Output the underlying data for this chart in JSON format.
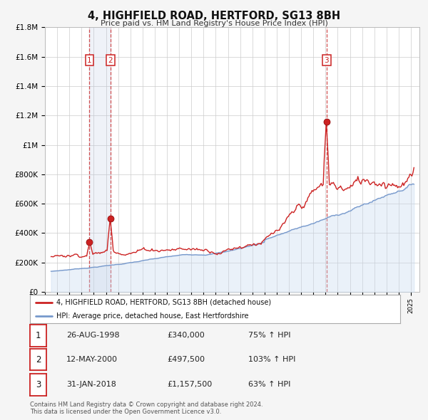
{
  "title": "4, HIGHFIELD ROAD, HERTFORD, SG13 8BH",
  "subtitle": "Price paid vs. HM Land Registry's House Price Index (HPI)",
  "background_color": "#f5f5f5",
  "plot_bg_color": "#ffffff",
  "grid_color": "#cccccc",
  "hpi_color": "#7799cc",
  "hpi_fill_color": "#c5d8ee",
  "price_color": "#cc2222",
  "ylabel_values": [
    "£0",
    "£200K",
    "£400K",
    "£600K",
    "£800K",
    "£1M",
    "£1.2M",
    "£1.4M",
    "£1.6M",
    "£1.8M"
  ],
  "ytick_values": [
    0,
    200000,
    400000,
    600000,
    800000,
    1000000,
    1200000,
    1400000,
    1600000,
    1800000
  ],
  "xmin": 1995.3,
  "xmax": 2025.7,
  "ymin": 0,
  "ymax": 1800000,
  "sale_dates": [
    1998.65,
    2000.36,
    2018.08
  ],
  "sale_prices": [
    340000,
    497500,
    1157500
  ],
  "sale_labels": [
    "1",
    "2",
    "3"
  ],
  "legend_line1": "4, HIGHFIELD ROAD, HERTFORD, SG13 8BH (detached house)",
  "legend_line2": "HPI: Average price, detached house, East Hertfordshire",
  "table_rows": [
    [
      "1",
      "26-AUG-1998",
      "£340,000",
      "75% ↑ HPI"
    ],
    [
      "2",
      "12-MAY-2000",
      "£497,500",
      "103% ↑ HPI"
    ],
    [
      "3",
      "31-JAN-2018",
      "£1,157,500",
      "63% ↑ HPI"
    ]
  ],
  "footnote": "Contains HM Land Registry data © Crown copyright and database right 2024.\nThis data is licensed under the Open Government Licence v3.0.",
  "shade_region": [
    1998.65,
    2000.36
  ]
}
